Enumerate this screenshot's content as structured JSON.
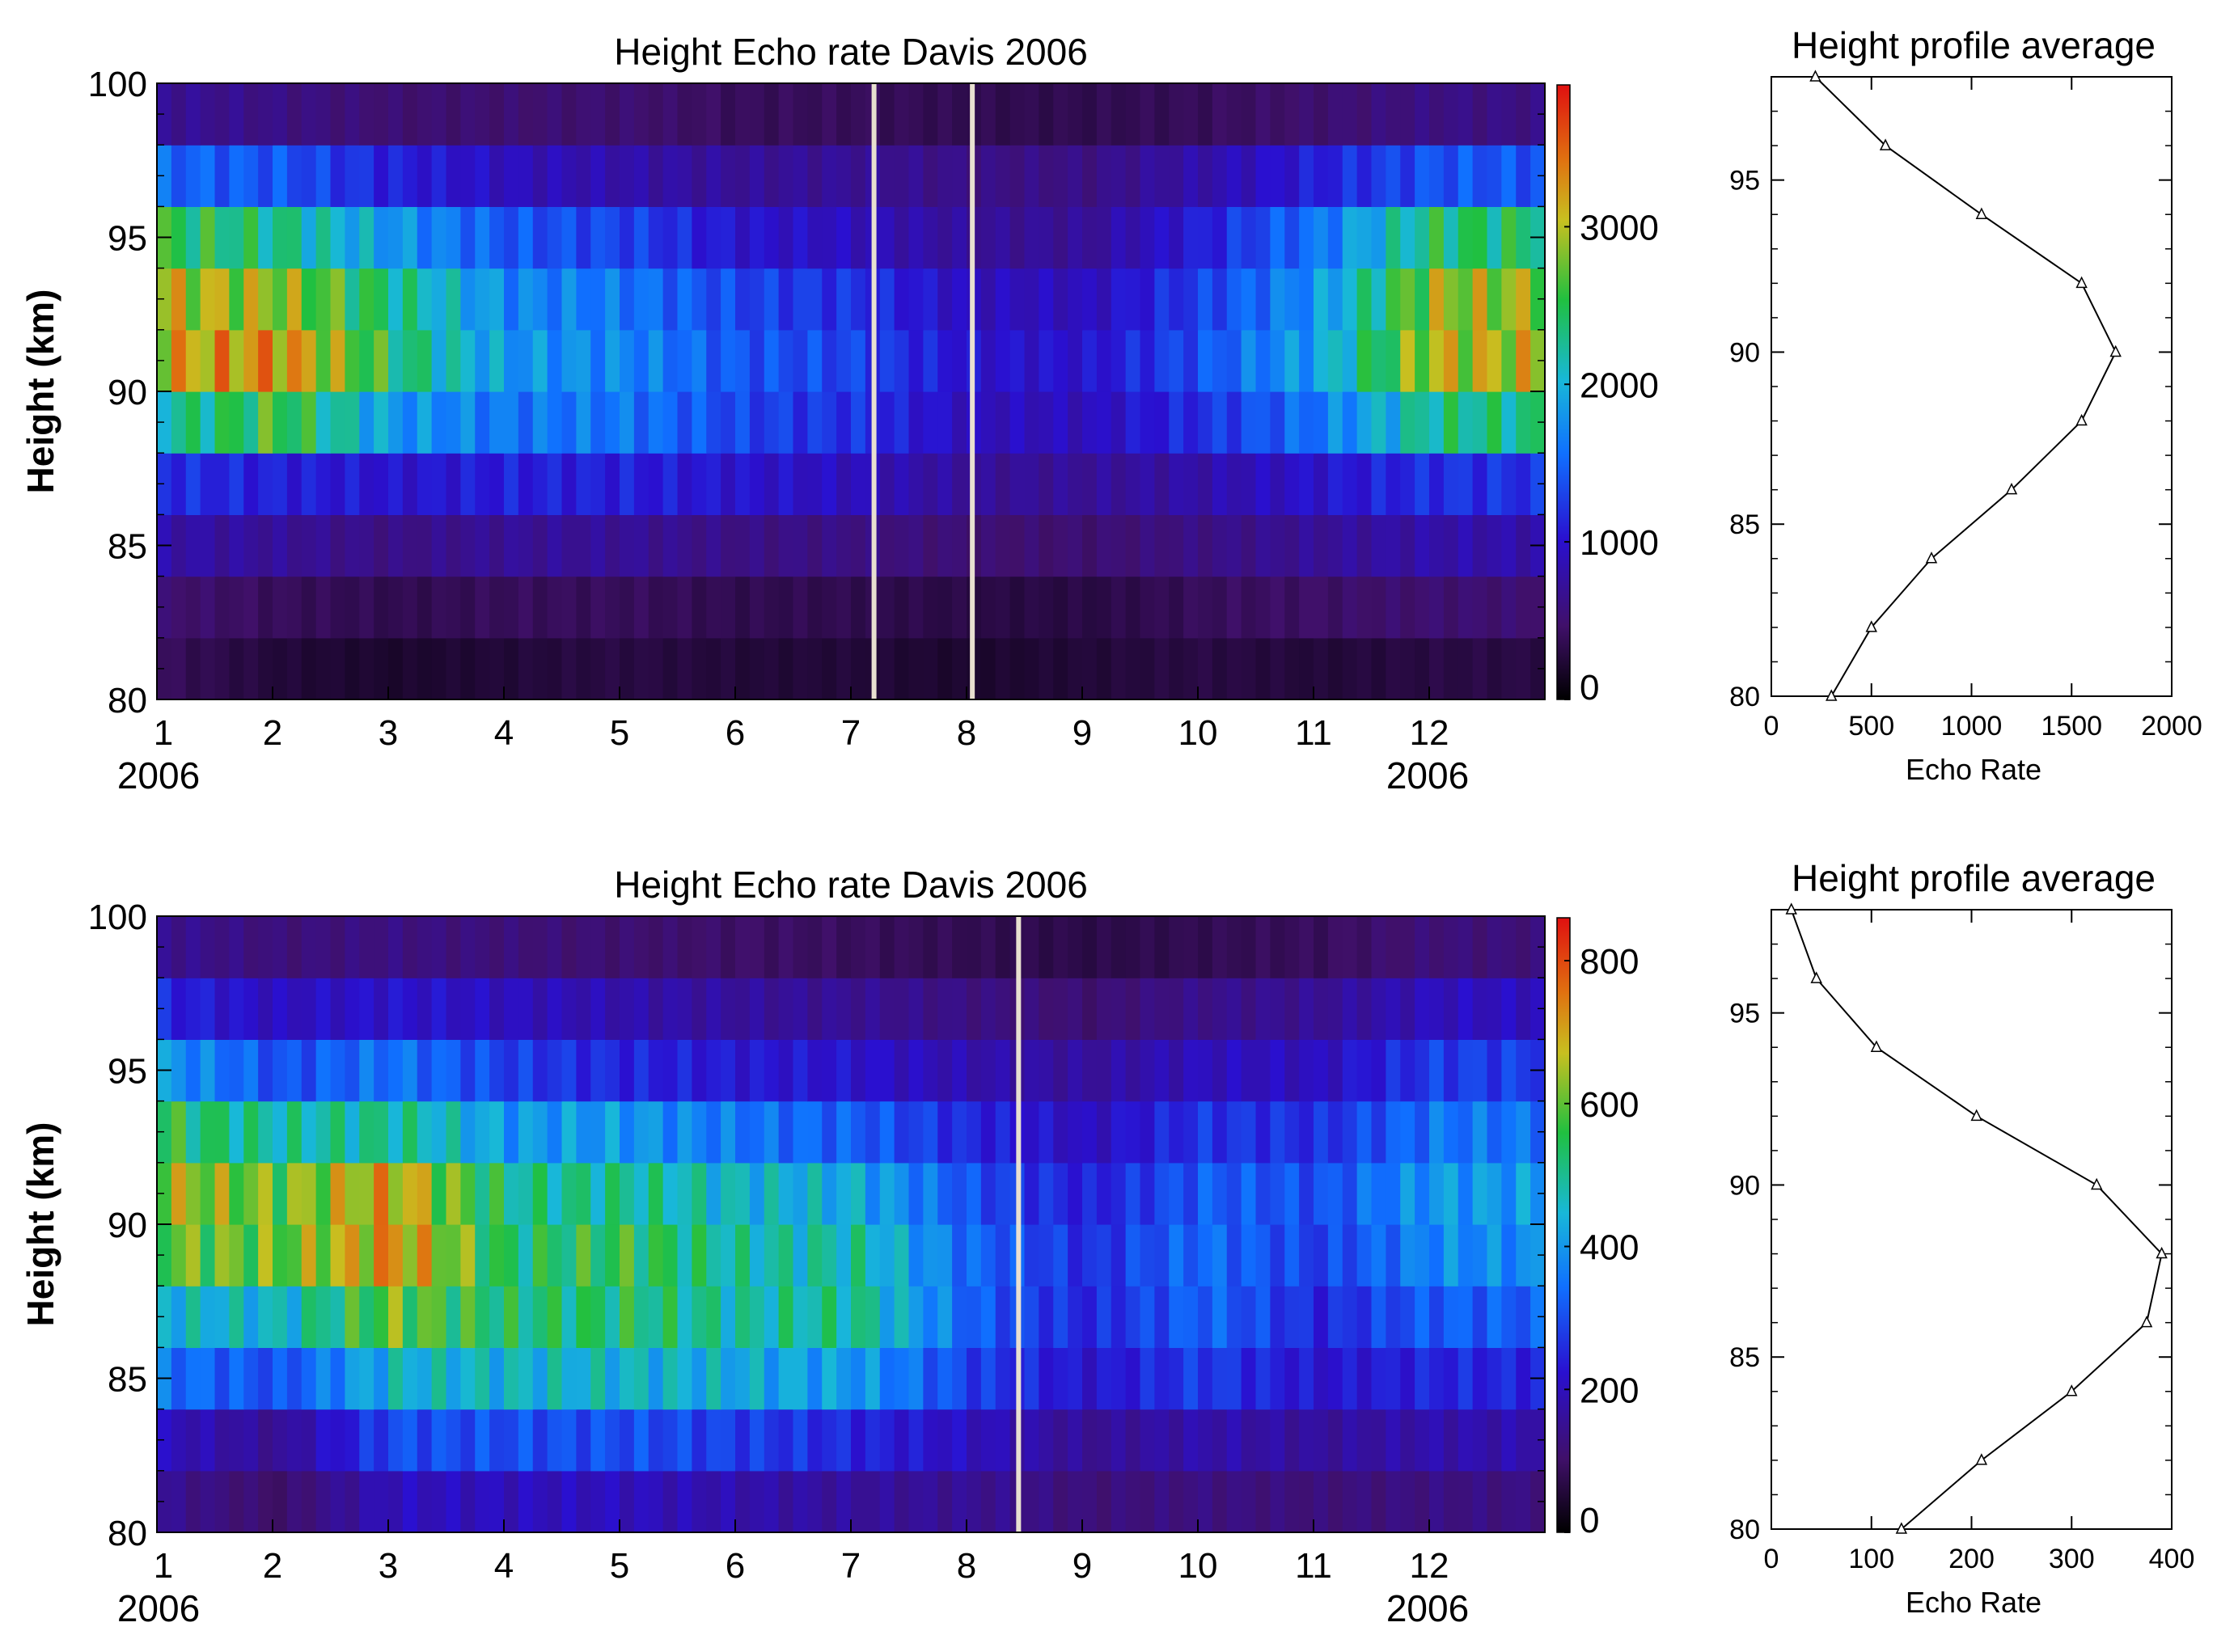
{
  "chart_data": [
    {
      "type": "heatmap",
      "title": "Height Echo rate Davis 2006",
      "ylabel": "Height (km)",
      "xlabel": "",
      "x_ticks": [
        "1",
        "2",
        "3",
        "4",
        "5",
        "6",
        "7",
        "8",
        "9",
        "10",
        "11",
        "12"
      ],
      "x_sublabels": [
        {
          "month": 1,
          "text": "2006"
        },
        {
          "month": 12,
          "text": "2006"
        }
      ],
      "xlim": [
        1,
        13
      ],
      "ylim": [
        80,
        100
      ],
      "y_ticks": [
        80,
        85,
        90,
        95,
        100
      ],
      "colorbar": {
        "min": 0,
        "max": 3900,
        "ticks": [
          0,
          1000,
          2000,
          3000
        ]
      },
      "gaps": [
        7.2,
        8.05
      ],
      "months": [
        1,
        2,
        3,
        4,
        5,
        6,
        7,
        8,
        9,
        10,
        11,
        12
      ],
      "heights": [
        81,
        83,
        85,
        87,
        89,
        91,
        93,
        95,
        97,
        99
      ],
      "grid_values": [
        [
          400,
          250,
          200,
          250,
          300,
          250,
          250,
          200,
          250,
          300,
          250,
          300
        ],
        [
          500,
          400,
          350,
          400,
          400,
          350,
          350,
          300,
          300,
          400,
          450,
          500
        ],
        [
          800,
          700,
          600,
          700,
          700,
          600,
          600,
          500,
          500,
          600,
          700,
          800
        ],
        [
          1200,
          1100,
          1000,
          1100,
          1100,
          1000,
          900,
          700,
          700,
          800,
          1000,
          1200
        ],
        [
          2200,
          2600,
          1800,
          1600,
          1600,
          1300,
          1200,
          900,
          900,
          1200,
          1600,
          2300
        ],
        [
          3100,
          3300,
          2400,
          1800,
          1700,
          1400,
          1300,
          1000,
          1000,
          1400,
          1900,
          3000
        ],
        [
          3000,
          2900,
          2300,
          1700,
          1600,
          1300,
          1200,
          900,
          900,
          1300,
          1800,
          2900
        ],
        [
          2500,
          2300,
          1800,
          1400,
          1300,
          1000,
          900,
          700,
          700,
          1100,
          1600,
          2400
        ],
        [
          1500,
          1400,
          1100,
          900,
          800,
          700,
          700,
          600,
          600,
          800,
          1100,
          1400
        ],
        [
          700,
          600,
          500,
          500,
          500,
          400,
          400,
          350,
          350,
          400,
          500,
          600
        ]
      ]
    },
    {
      "type": "line",
      "title": "Height profile average",
      "xlabel": "Echo Rate",
      "ylabel": "",
      "xlim": [
        0,
        2000
      ],
      "ylim": [
        80,
        98
      ],
      "x_ticks": [
        0,
        500,
        1000,
        1500,
        2000
      ],
      "y_ticks": [
        80,
        85,
        90,
        95
      ],
      "series": [
        {
          "name": "average",
          "marker": "triangle",
          "x": [
            300,
            500,
            800,
            1200,
            1550,
            1720,
            1550,
            1050,
            570,
            220
          ],
          "y": [
            80,
            82,
            84,
            86,
            88,
            90,
            92,
            94,
            96,
            98
          ]
        }
      ]
    },
    {
      "type": "heatmap",
      "title": "Height Echo rate Davis 2006",
      "ylabel": "Height (km)",
      "xlabel": "",
      "x_ticks": [
        "1",
        "2",
        "3",
        "4",
        "5",
        "6",
        "7",
        "8",
        "9",
        "10",
        "11",
        "12"
      ],
      "x_sublabels": [
        {
          "month": 1,
          "text": "2006"
        },
        {
          "month": 12,
          "text": "2006"
        }
      ],
      "xlim": [
        1,
        13
      ],
      "ylim": [
        80,
        100
      ],
      "y_ticks": [
        80,
        85,
        90,
        95,
        100
      ],
      "colorbar": {
        "min": 0,
        "max": 860,
        "ticks": [
          0,
          200,
          400,
          600,
          800
        ]
      },
      "gaps": [
        8.45
      ],
      "months": [
        1,
        2,
        3,
        4,
        5,
        6,
        7,
        8,
        9,
        10,
        11,
        12
      ],
      "heights": [
        81,
        83,
        85,
        87,
        89,
        91,
        93,
        95,
        97,
        99
      ],
      "grid_values": [
        [
          150,
          100,
          200,
          200,
          200,
          180,
          160,
          150,
          120,
          130,
          120,
          130
        ],
        [
          200,
          150,
          300,
          300,
          300,
          280,
          250,
          200,
          150,
          180,
          160,
          180
        ],
        [
          350,
          300,
          450,
          450,
          450,
          430,
          400,
          280,
          220,
          280,
          220,
          250
        ],
        [
          450,
          450,
          600,
          520,
          530,
          480,
          500,
          320,
          250,
          330,
          250,
          320
        ],
        [
          600,
          600,
          720,
          520,
          560,
          480,
          480,
          330,
          260,
          340,
          280,
          380
        ],
        [
          650,
          600,
          700,
          500,
          500,
          450,
          430,
          300,
          240,
          320,
          300,
          400
        ],
        [
          550,
          480,
          500,
          400,
          400,
          350,
          320,
          250,
          200,
          270,
          260,
          350
        ],
        [
          400,
          300,
          350,
          280,
          250,
          230,
          220,
          180,
          160,
          200,
          200,
          280
        ],
        [
          250,
          200,
          220,
          200,
          180,
          160,
          150,
          130,
          110,
          140,
          150,
          200
        ],
        [
          150,
          120,
          130,
          120,
          110,
          100,
          90,
          80,
          70,
          80,
          90,
          120
        ]
      ]
    },
    {
      "type": "line",
      "title": "Height profile average",
      "xlabel": "Echo Rate",
      "ylabel": "",
      "xlim": [
        0,
        400
      ],
      "ylim": [
        80,
        98
      ],
      "x_ticks": [
        0,
        100,
        200,
        300,
        400
      ],
      "y_ticks": [
        80,
        85,
        90,
        95
      ],
      "series": [
        {
          "name": "average",
          "marker": "triangle",
          "x": [
            130,
            210,
            300,
            375,
            390,
            325,
            205,
            105,
            45,
            20
          ],
          "y": [
            80,
            82,
            84,
            86,
            88,
            90,
            92,
            94,
            96,
            98
          ]
        }
      ]
    }
  ]
}
